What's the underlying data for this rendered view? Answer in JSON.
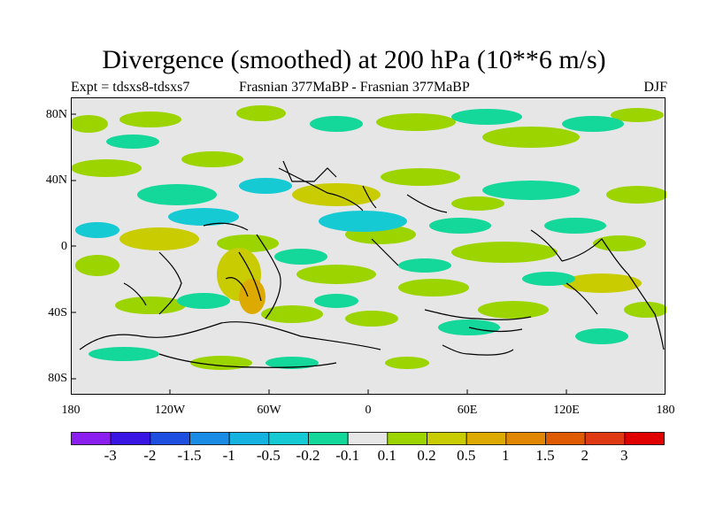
{
  "title": "Divergence (smoothed) at 200 hPa (10**6 m/s)",
  "subtitle_left": "Expt = tdsxs8-tdsxs7",
  "subtitle_center": "Frasnian 377MaBP - Frasnian 377MaBP",
  "subtitle_right": "DJF",
  "y_ticks": [
    "80N",
    "40N",
    "0",
    "40S",
    "80S"
  ],
  "x_ticks": [
    "180",
    "120W",
    "60W",
    "0",
    "60E",
    "120E",
    "180"
  ],
  "colorbar": {
    "labels": [
      "-3",
      "-2",
      "-1.5",
      "-1",
      "-0.5",
      "-0.2",
      "-0.1",
      "0.1",
      "0.2",
      "0.5",
      "1",
      "1.5",
      "2",
      "3"
    ],
    "colors": [
      "#8a1ff0",
      "#3a16e4",
      "#1f4fe0",
      "#1a8ce6",
      "#16b3e0",
      "#16cad4",
      "#14d89a",
      "#e6e6e6",
      "#9cd400",
      "#c8cc00",
      "#dcaa00",
      "#e08600",
      "#e05a00",
      "#e03a14",
      "#e00000"
    ]
  },
  "colors": {
    "background": "#e6e6e6",
    "neg_weak": "#14d89a",
    "neg_mid": "#16cad4",
    "pos_weak": "#9cd400",
    "pos_mid": "#c8cc00",
    "pos_strong": "#dcaa00",
    "coast": "#000000"
  }
}
